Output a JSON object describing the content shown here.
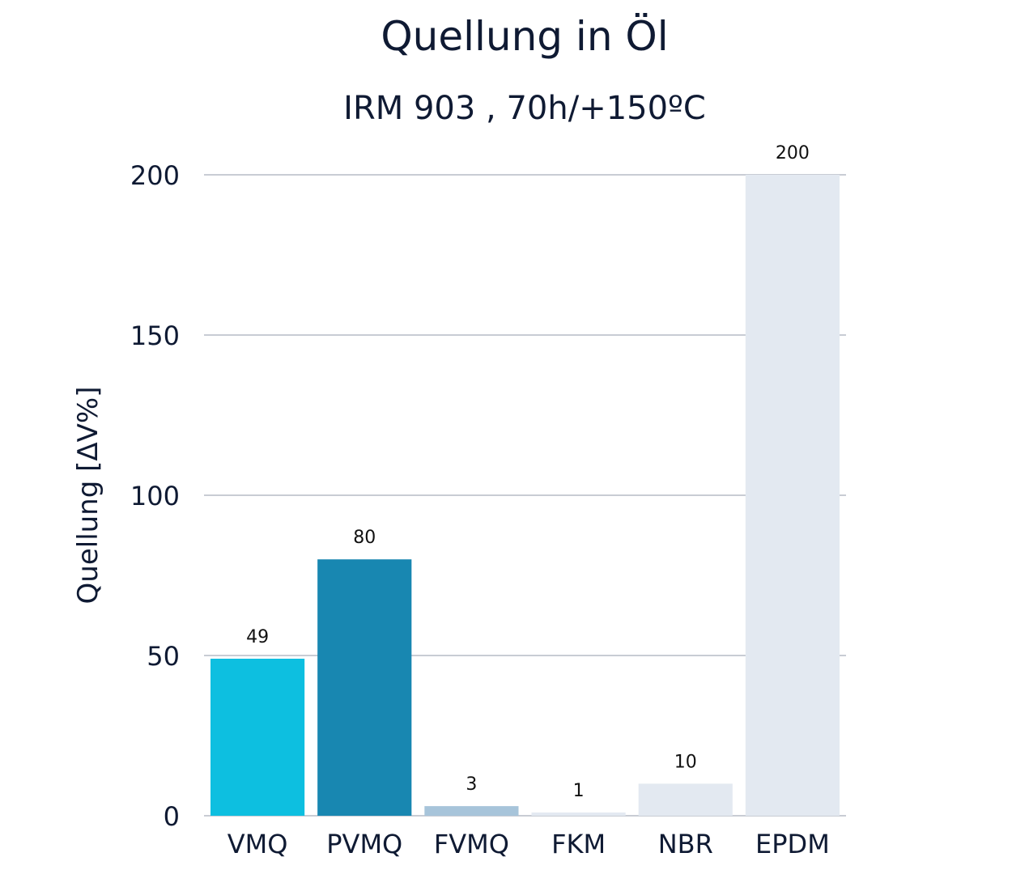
{
  "chart_data": {
    "type": "bar",
    "title": "Quellung in Öl",
    "subtitle": "IRM 903 , 70h/+150ºC",
    "ylabel": "Quellung [ΔV%]",
    "xlabel": "",
    "ylim": [
      0,
      200
    ],
    "yticks": [
      0,
      50,
      100,
      150,
      200
    ],
    "grid": true,
    "categories": [
      "VMQ",
      "PVMQ",
      "FVMQ",
      "FKM",
      "NBR",
      "EPDM"
    ],
    "values": [
      49,
      80,
      3,
      1,
      10,
      200
    ],
    "data_labels": [
      "49",
      "80",
      "3",
      "1",
      "10",
      "200"
    ],
    "colors": [
      "#0dbfe0",
      "#1887b1",
      "#a7c4da",
      "#e3e9f1",
      "#e3e9f1",
      "#e3e9f1"
    ]
  }
}
